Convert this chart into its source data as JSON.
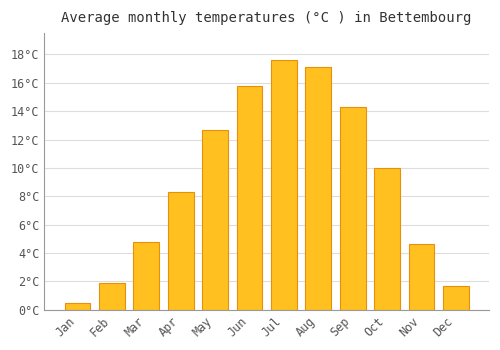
{
  "title": "Average monthly temperatures (°C ) in Bettembourg",
  "months": [
    "Jan",
    "Feb",
    "Mar",
    "Apr",
    "May",
    "Jun",
    "Jul",
    "Aug",
    "Sep",
    "Oct",
    "Nov",
    "Dec"
  ],
  "values": [
    0.5,
    1.9,
    4.8,
    8.3,
    12.7,
    15.8,
    17.6,
    17.1,
    14.3,
    10.0,
    4.6,
    1.7
  ],
  "bar_color": "#FFC020",
  "bar_edge_color": "#E8900A",
  "background_color": "#FFFFFF",
  "plot_bg_color": "#FFFFFF",
  "grid_color": "#DDDDDD",
  "yticks": [
    0,
    2,
    4,
    6,
    8,
    10,
    12,
    14,
    16,
    18
  ],
  "ylim": [
    0,
    19.5
  ],
  "title_fontsize": 10,
  "tick_label_fontsize": 8.5,
  "font_family": "monospace",
  "bar_width": 0.75
}
